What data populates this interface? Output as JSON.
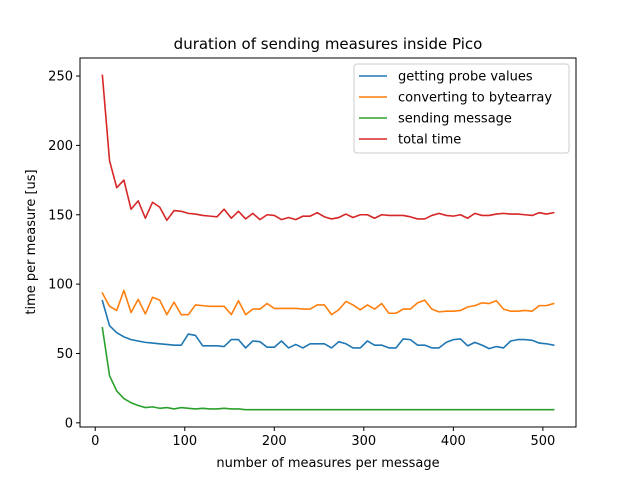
{
  "chart_data": {
    "type": "line",
    "title": "duration of sending measures inside Pico",
    "xlabel": "number of measures per message",
    "ylabel": "time per measure [us]",
    "xlim": [
      -17,
      537
    ],
    "ylim": [
      -3,
      263
    ],
    "xticks": [
      0,
      100,
      200,
      300,
      400,
      500
    ],
    "yticks": [
      0,
      50,
      100,
      150,
      200,
      250
    ],
    "grid": false,
    "legend_position": "top-right",
    "x": [
      8,
      16,
      24,
      32,
      40,
      48,
      56,
      64,
      72,
      80,
      88,
      96,
      104,
      112,
      120,
      128,
      136,
      144,
      152,
      160,
      168,
      176,
      184,
      192,
      200,
      208,
      216,
      224,
      232,
      240,
      248,
      256,
      264,
      272,
      280,
      288,
      296,
      304,
      312,
      320,
      328,
      336,
      344,
      352,
      360,
      368,
      376,
      384,
      392,
      400,
      408,
      416,
      424,
      432,
      440,
      448,
      456,
      464,
      472,
      480,
      488,
      496,
      504,
      512
    ],
    "series": [
      {
        "name": "getting probe values",
        "color": "#1f77b4",
        "values": [
          88,
          70,
          65,
          62,
          60,
          59,
          58,
          57.5,
          57,
          56.5,
          56,
          56,
          64,
          63,
          55.5,
          55.5,
          55.5,
          55,
          60,
          60,
          54,
          59,
          58.5,
          54.5,
          54.5,
          59,
          54,
          56.5,
          54,
          57,
          57,
          57,
          54,
          58.5,
          57,
          54,
          54,
          59,
          56,
          56,
          54,
          54,
          60.5,
          60,
          56,
          56,
          54,
          54,
          58,
          60,
          60.5,
          55.5,
          58,
          56,
          53.5,
          55,
          54,
          59,
          60,
          60,
          59.5,
          57.5,
          57,
          56
        ]
      },
      {
        "name": "converting to bytearray",
        "color": "#ff7f0e",
        "values": [
          93.5,
          84,
          81,
          95.5,
          79.5,
          89,
          78.5,
          90.5,
          88.5,
          78,
          87,
          78,
          78,
          85,
          84.5,
          84,
          84,
          84,
          78,
          88,
          78,
          82,
          82,
          86,
          82.5,
          82.5,
          82.5,
          82.5,
          82,
          82,
          85,
          85,
          78,
          81.5,
          87.5,
          85,
          81.5,
          85,
          82,
          86,
          79,
          79,
          82,
          82,
          86.5,
          88.5,
          82,
          80,
          80.5,
          80.5,
          81,
          83.5,
          84.5,
          86.5,
          86,
          88,
          82,
          80.5,
          80.5,
          81,
          80.5,
          84.5,
          84.5,
          86
        ]
      },
      {
        "name": "sending message",
        "color": "#2ca02c",
        "values": [
          68.5,
          34,
          23,
          17.5,
          14.5,
          12.5,
          11,
          11.5,
          10.5,
          11,
          10,
          11,
          10.5,
          10,
          10.5,
          10,
          10,
          10.5,
          10,
          10,
          9.5,
          9.5,
          9.5,
          9.5,
          9.5,
          9.5,
          9.5,
          9.5,
          9.5,
          9.5,
          9.5,
          9.5,
          9.5,
          9.5,
          9.5,
          9.5,
          9.5,
          9.5,
          9.5,
          9.5,
          9.5,
          9.5,
          9.5,
          9.5,
          9.5,
          9.5,
          9.5,
          9.5,
          9.5,
          9.5,
          9.5,
          9.5,
          9.5,
          9.5,
          9.5,
          9.5,
          9.5,
          9.5,
          9.5,
          9.5,
          9.5,
          9.5,
          9.5,
          9.5
        ]
      },
      {
        "name": "total time",
        "color": "#d62728",
        "values": [
          250.5,
          189,
          169.5,
          175,
          154,
          160,
          147.5,
          159,
          155.5,
          146,
          153,
          152.5,
          151,
          150.5,
          149.5,
          149,
          148.5,
          154,
          147.5,
          152.5,
          147,
          151,
          146.5,
          150,
          149.5,
          146.5,
          148,
          146.5,
          149,
          149,
          151.5,
          148.5,
          147,
          148,
          150.5,
          148,
          150,
          150,
          147.5,
          150,
          149.5,
          149.5,
          149.5,
          148.5,
          147,
          147,
          149.5,
          151,
          149.5,
          149,
          150,
          147.5,
          151,
          149.5,
          149.5,
          150.5,
          151,
          150.5,
          150.5,
          150,
          149.5,
          151.5,
          150.5,
          151.5
        ]
      }
    ]
  }
}
